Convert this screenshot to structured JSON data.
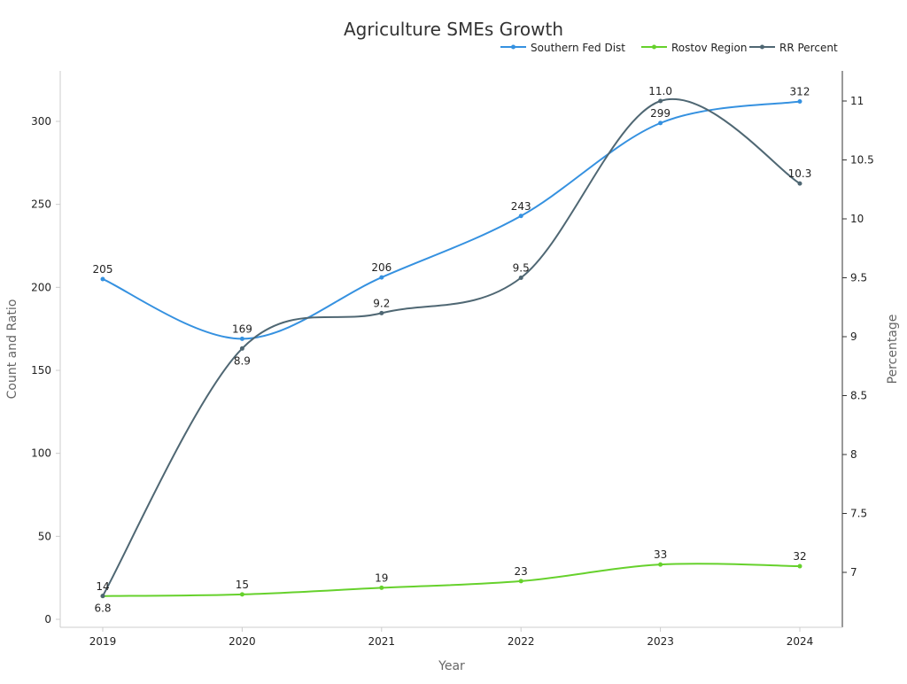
{
  "chart_data": {
    "type": "line",
    "title": "Agriculture SMEs Growth",
    "xlabel": "Year",
    "ylabel": "Count and Ratio",
    "y2label": "Percentage",
    "categories": [
      "2019",
      "2020",
      "2021",
      "2022",
      "2023",
      "2024"
    ],
    "ylim": [
      0,
      300
    ],
    "y_ticks": [
      0,
      50,
      100,
      150,
      200,
      250,
      300
    ],
    "y2lim": [
      7,
      11
    ],
    "y2_ticks": [
      "7",
      "7.5",
      "8",
      "8.5",
      "9",
      "9.5",
      "10",
      "10.5",
      "11"
    ],
    "grid": false,
    "legend_placement": "top-right",
    "series": [
      {
        "name": "Southern Fed Dist",
        "axis": "left",
        "color": "#3591e0",
        "values": [
          205,
          169,
          206,
          243,
          299,
          312
        ],
        "labels": [
          "205",
          "169",
          "206",
          "243",
          "299",
          "312"
        ]
      },
      {
        "name": "Rostov Region",
        "axis": "left",
        "color": "#66d12c",
        "values": [
          14,
          15,
          19,
          23,
          33,
          32
        ],
        "labels": [
          "14",
          "15",
          "19",
          "23",
          "33",
          "32"
        ]
      },
      {
        "name": "RR Percent",
        "axis": "right",
        "color": "#4f6773",
        "values": [
          6.8,
          8.9,
          9.2,
          9.5,
          11.0,
          10.3
        ],
        "labels": [
          "6.8",
          "8.9",
          "9.2",
          "9.5",
          "11.0",
          "10.3"
        ]
      }
    ]
  }
}
